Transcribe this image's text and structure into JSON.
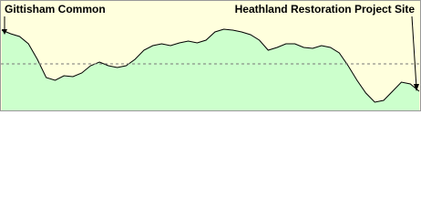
{
  "chart_data": {
    "type": "area",
    "color": "#ccffcc",
    "line_color": "#000000",
    "background": "#ffffdd",
    "start_label": "Gittisham Common",
    "end_label": "Heathland Restoration Project Site",
    "ylim": [
      0,
      122
    ],
    "values": [
      89,
      85,
      82,
      74,
      57,
      37,
      34,
      39,
      38,
      42,
      50,
      54,
      50,
      48,
      50,
      57,
      67,
      72,
      74,
      72,
      75,
      77,
      75,
      78,
      87,
      90,
      89,
      87,
      84,
      78,
      67,
      70,
      74,
      74,
      70,
      69,
      72,
      70,
      64,
      50,
      34,
      20,
      10,
      12,
      22,
      32,
      30,
      22
    ]
  }
}
